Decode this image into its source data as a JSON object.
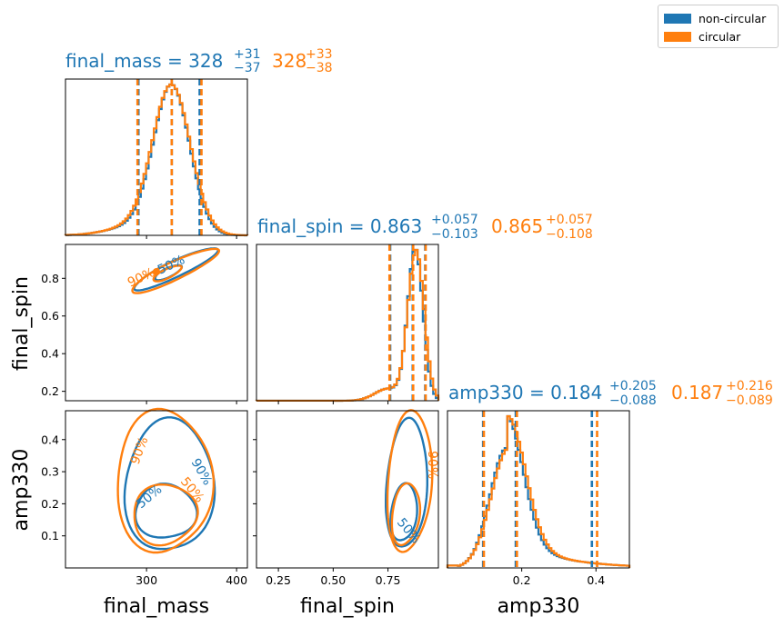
{
  "colors": {
    "series_0": "#1f77b4",
    "series_1": "#ff7f0e"
  },
  "legend": {
    "items": [
      {
        "label": "non-circular",
        "color": "#1f77b4"
      },
      {
        "label": "circular",
        "color": "#ff7f0e"
      }
    ]
  },
  "titles": {
    "final_mass": {
      "prefix": "final_mass = ",
      "blue": {
        "val": "328",
        "up": "+31",
        "lo": "−37"
      },
      "orange": {
        "val": "328",
        "up": "+33",
        "lo": "−38"
      }
    },
    "final_spin": {
      "prefix": "final_spin = ",
      "blue": {
        "val": "0.863",
        "up": "+0.057",
        "lo": "−0.103"
      },
      "orange": {
        "val": "0.865",
        "up": "+0.057",
        "lo": "−0.108"
      }
    },
    "amp330": {
      "prefix": "amp330 = ",
      "blue": {
        "val": "0.184",
        "up": "+0.205",
        "lo": "−0.088"
      },
      "orange": {
        "val": "0.187",
        "up": "+0.216",
        "lo": "−0.089"
      }
    }
  },
  "axis_labels": {
    "x": [
      "final_mass",
      "final_spin",
      "amp330"
    ],
    "y": [
      "final_spin",
      "amp330"
    ]
  },
  "contour_labels": [
    "50%",
    "90%"
  ],
  "chart_data": {
    "type": "corner",
    "parameters": [
      "final_mass",
      "final_spin",
      "amp330"
    ],
    "series": [
      {
        "name": "non-circular",
        "color": "#1f77b4",
        "summary": {
          "final_mass": {
            "median": 328,
            "plus": 31,
            "minus": 37
          },
          "final_spin": {
            "median": 0.863,
            "plus": 0.057,
            "minus": 0.103
          },
          "amp330": {
            "median": 0.184,
            "plus": 0.205,
            "minus": 0.088
          }
        }
      },
      {
        "name": "circular",
        "color": "#ff7f0e",
        "summary": {
          "final_mass": {
            "median": 328,
            "plus": 33,
            "minus": 38
          },
          "final_spin": {
            "median": 0.865,
            "plus": 0.057,
            "minus": 0.108
          },
          "amp330": {
            "median": 0.187,
            "plus": 0.216,
            "minus": 0.089
          }
        }
      }
    ],
    "ranges": {
      "final_mass": [
        210,
        412
      ],
      "final_spin": [
        0.15,
        0.98
      ],
      "amp330": [
        0.0,
        0.49
      ]
    },
    "ticks": {
      "final_mass": {
        "values": [
          300,
          400
        ],
        "labels": [
          "300",
          "400"
        ]
      },
      "final_spin_y": {
        "values": [
          0.2,
          0.4,
          0.6,
          0.8
        ],
        "labels": [
          "0.2",
          "0.4",
          "0.6",
          "0.8"
        ]
      },
      "final_spin_x": {
        "values": [
          0.25,
          0.5,
          0.75
        ],
        "labels": [
          "0.25",
          "0.50",
          "0.75"
        ]
      },
      "amp330_y": {
        "values": [
          0.1,
          0.2,
          0.3,
          0.4
        ],
        "labels": [
          "0.1",
          "0.2",
          "0.3",
          "0.4"
        ]
      },
      "amp330_x": {
        "values": [
          0.2,
          0.4
        ],
        "labels": [
          "0.2",
          "0.4"
        ]
      }
    },
    "grid": false,
    "legend_position": "top-right"
  }
}
